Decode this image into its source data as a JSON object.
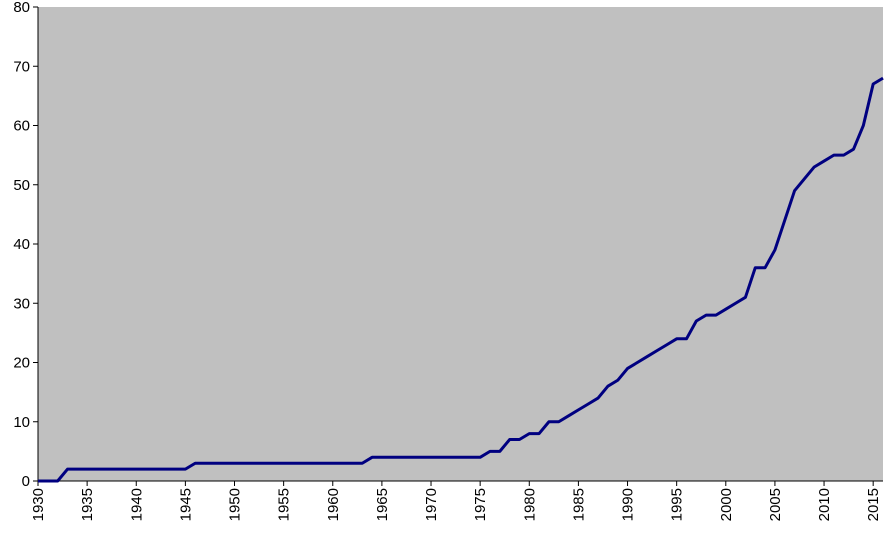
{
  "chart_data": {
    "type": "line",
    "x": [
      1930,
      1931,
      1932,
      1933,
      1934,
      1935,
      1936,
      1937,
      1938,
      1939,
      1940,
      1941,
      1942,
      1943,
      1944,
      1945,
      1946,
      1947,
      1948,
      1949,
      1950,
      1951,
      1952,
      1953,
      1954,
      1955,
      1956,
      1957,
      1958,
      1959,
      1960,
      1961,
      1962,
      1963,
      1964,
      1965,
      1966,
      1967,
      1968,
      1969,
      1970,
      1971,
      1972,
      1973,
      1974,
      1975,
      1976,
      1977,
      1978,
      1979,
      1980,
      1981,
      1982,
      1983,
      1984,
      1985,
      1986,
      1987,
      1988,
      1989,
      1990,
      1991,
      1992,
      1993,
      1994,
      1995,
      1996,
      1997,
      1998,
      1999,
      2000,
      2001,
      2002,
      2003,
      2004,
      2005,
      2006,
      2007,
      2008,
      2009,
      2010,
      2011,
      2012,
      2013,
      2014,
      2015,
      2016
    ],
    "values": [
      0,
      0,
      0,
      2,
      2,
      2,
      2,
      2,
      2,
      2,
      2,
      2,
      2,
      2,
      2,
      2,
      3,
      3,
      3,
      3,
      3,
      3,
      3,
      3,
      3,
      3,
      3,
      3,
      3,
      3,
      3,
      3,
      3,
      3,
      4,
      4,
      4,
      4,
      4,
      4,
      4,
      4,
      4,
      4,
      4,
      4,
      5,
      5,
      7,
      7,
      8,
      8,
      10,
      10,
      11,
      12,
      13,
      14,
      16,
      17,
      19,
      20,
      21,
      22,
      23,
      24,
      24,
      27,
      28,
      28,
      29,
      30,
      31,
      36,
      36,
      39,
      44,
      49,
      51,
      53,
      54,
      55,
      55,
      56,
      60,
      67,
      68
    ],
    "color": "#000080",
    "background": "#c0c0c0",
    "xlim": [
      1930,
      2016
    ],
    "xticks": [
      1930,
      1935,
      1940,
      1945,
      1950,
      1955,
      1960,
      1965,
      1970,
      1975,
      1980,
      1985,
      1990,
      1995,
      2000,
      2005,
      2010,
      2015
    ],
    "ylim": [
      0,
      80
    ],
    "yticks": [
      0,
      10,
      20,
      30,
      40,
      50,
      60,
      70,
      80
    ]
  }
}
